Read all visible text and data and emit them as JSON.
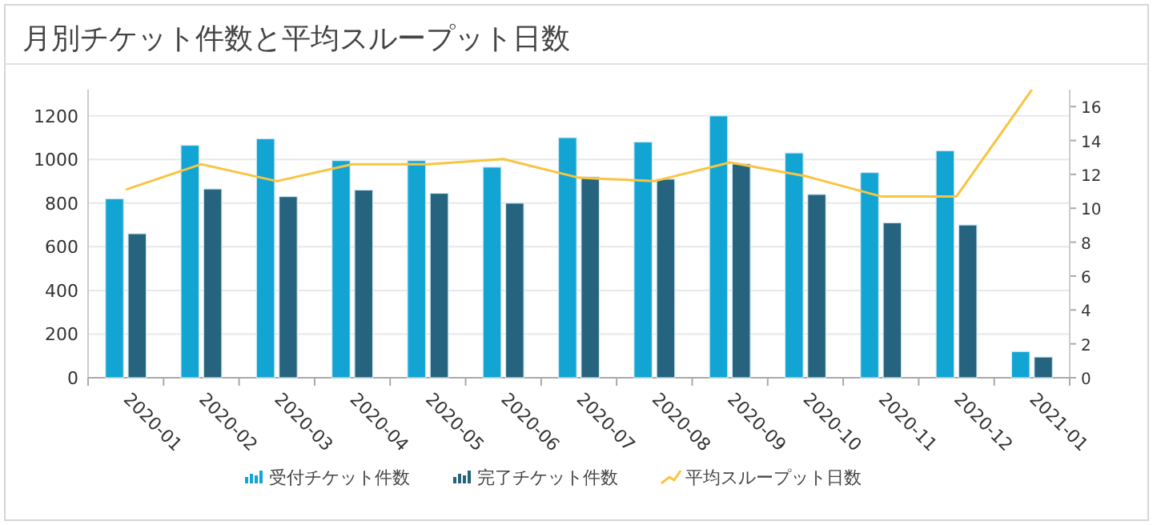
{
  "chart_data": {
    "type": "bar",
    "title": "月別チケット件数と平均スループット日数",
    "categories": [
      "2020-01",
      "2020-02",
      "2020-03",
      "2020-04",
      "2020-05",
      "2020-06",
      "2020-07",
      "2020-08",
      "2020-09",
      "2020-10",
      "2020-11",
      "2020-12",
      "2021-01"
    ],
    "series": [
      {
        "name": "受付チケット件数",
        "color": "#12a5d4",
        "values": [
          820,
          1065,
          1095,
          995,
          995,
          965,
          1100,
          1080,
          1200,
          1030,
          940,
          1040,
          120
        ]
      },
      {
        "name": "完了チケット件数",
        "color": "#26637f",
        "values": [
          660,
          865,
          830,
          860,
          845,
          800,
          920,
          910,
          980,
          840,
          710,
          700,
          95
        ]
      },
      {
        "name": "平均スループット日数",
        "type": "line",
        "axis": "y2",
        "color": "#f9c440",
        "values": [
          11.1,
          12.6,
          11.6,
          12.6,
          12.6,
          12.9,
          11.8,
          11.6,
          12.7,
          11.9,
          10.7,
          10.7,
          17
        ]
      }
    ],
    "ylim": [
      0,
      1320
    ],
    "yticks": [
      0,
      200,
      400,
      600,
      800,
      1000,
      1200
    ],
    "y2lim": [
      0,
      17
    ],
    "y2ticks": [
      0,
      2,
      4,
      6,
      8,
      10,
      12,
      14,
      16
    ],
    "grid": "y",
    "legend": "bottom"
  }
}
